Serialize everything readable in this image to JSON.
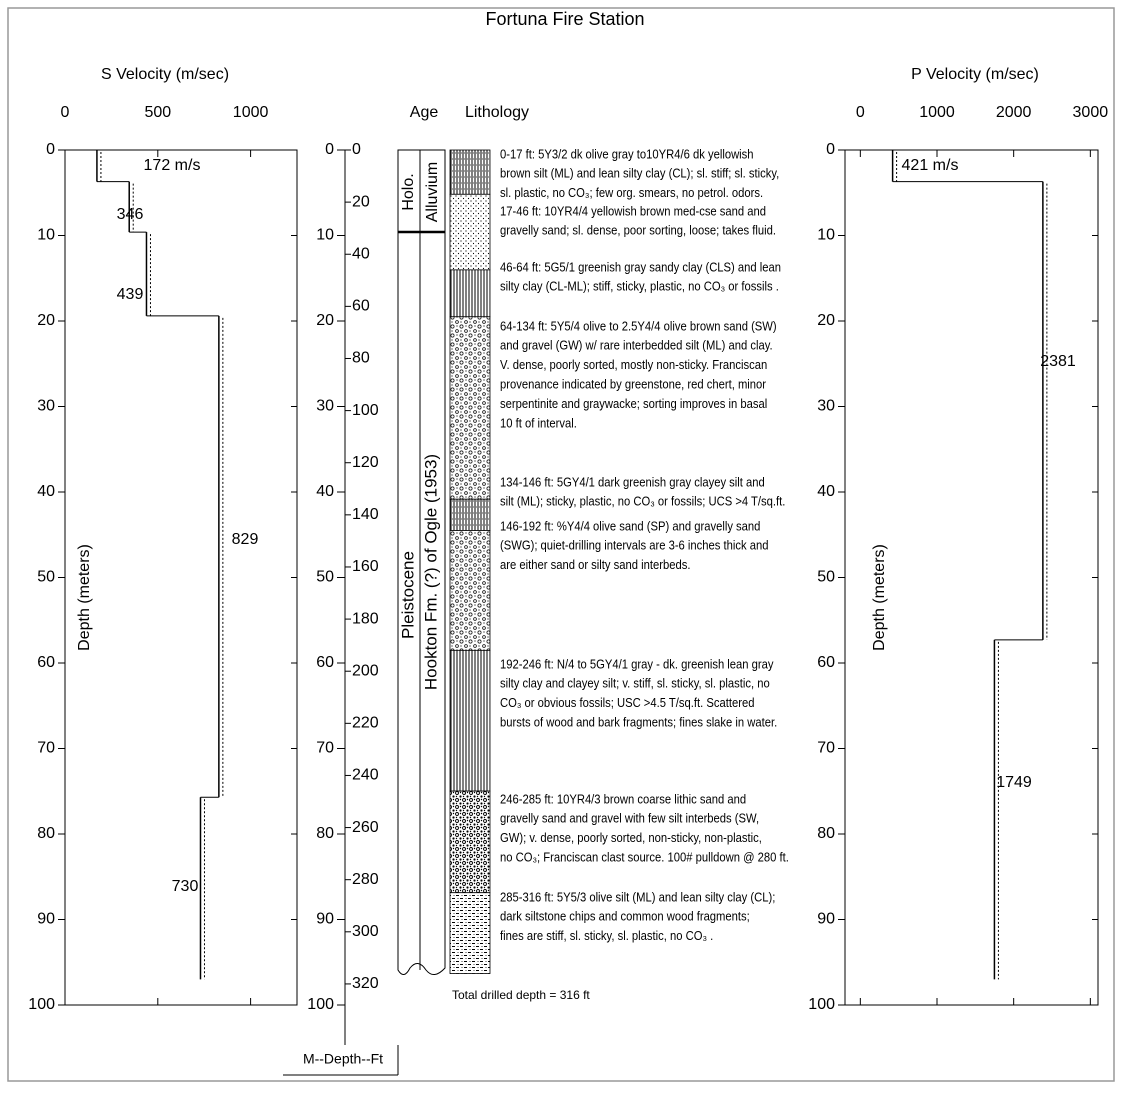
{
  "title": "Fortuna Fire Station",
  "chart_data": [
    {
      "type": "step-profile",
      "xlabel": "S Velocity (m/sec)",
      "ylabel": "Depth (meters)",
      "xlim": [
        0,
        1250
      ],
      "xticks": [
        0,
        500,
        1000
      ],
      "ylim": [
        0,
        100
      ],
      "yticks": [
        0,
        10,
        20,
        30,
        40,
        50,
        60,
        70,
        80,
        90,
        100
      ],
      "color": "#000000",
      "values": [
        172,
        346,
        439,
        829,
        730
      ],
      "value_labels": [
        "172 m/s",
        "346",
        "439",
        "829",
        "730"
      ],
      "depth_top": [
        0,
        3.7,
        9.6,
        19.4,
        75.7
      ],
      "depth_bottom": [
        3.7,
        9.6,
        19.4,
        75.7,
        97
      ]
    },
    {
      "type": "step-profile",
      "xlabel": "P Velocity (m/sec)",
      "ylabel": "Depth (meters)",
      "xlim": [
        -200,
        3100
      ],
      "xticks": [
        0,
        1000,
        2000,
        3000
      ],
      "ylim": [
        0,
        100
      ],
      "yticks": [
        0,
        10,
        20,
        30,
        40,
        50,
        60,
        70,
        80,
        90,
        100
      ],
      "color": "#000000",
      "values": [
        421,
        2381,
        1749
      ],
      "value_labels": [
        "421 m/s",
        "2381",
        "1749"
      ],
      "depth_top": [
        0,
        3.7,
        57.3
      ],
      "depth_bottom": [
        3.7,
        57.3,
        97
      ]
    }
  ],
  "depth_scale": {
    "meters": [
      0,
      10,
      20,
      30,
      40,
      50,
      60,
      70,
      80,
      90,
      100
    ],
    "feet": [
      0,
      20,
      40,
      60,
      80,
      100,
      120,
      140,
      160,
      180,
      200,
      220,
      240,
      260,
      280,
      300,
      320
    ],
    "label": "M--Depth--Ft"
  },
  "age": {
    "title": "Age",
    "epochs": [
      "Holo.",
      "Pleistocene"
    ],
    "formations": [
      "Alluvium",
      "Hookton Fm. (?) of Ogle (1953)"
    ]
  },
  "lithology": {
    "title": "Lithology",
    "total": "Total drilled depth = 316 ft",
    "intervals": [
      {
        "top_ft": 0,
        "bottom_ft": 17,
        "description": [
          "0-17 ft: 5Y3/2 dk olive gray to10YR4/6 dk yellowish",
          "brown silt (ML) and lean silty clay (CL); sl. stiff; sl. sticky,",
          "sl. plastic, no CO₃; few org. smears, no petrol. odors."
        ]
      },
      {
        "top_ft": 17,
        "bottom_ft": 46,
        "description": [
          "17-46 ft: 10YR4/4 yellowish brown med-cse sand and",
          "gravelly sand; sl. dense, poor sorting, loose; takes fluid."
        ]
      },
      {
        "top_ft": 46,
        "bottom_ft": 64,
        "description": [
          "46-64 ft: 5G5/1 greenish gray sandy clay (CLS) and lean",
          "silty clay (CL-ML); stiff, sticky, plastic, no CO₃ or fossils ."
        ]
      },
      {
        "top_ft": 64,
        "bottom_ft": 134,
        "description": [
          "64-134 ft: 5Y5/4 olive to 2.5Y4/4 olive brown sand (SW)",
          "and gravel (GW) w/ rare interbedded silt (ML) and clay.",
          "V. dense, poorly sorted, mostly non-sticky. Franciscan",
          "provenance indicated by greenstone, red chert, minor",
          "serpentinite and graywacke; sorting improves in basal",
          "10 ft of interval."
        ]
      },
      {
        "top_ft": 134,
        "bottom_ft": 146,
        "description": [
          "134-146 ft: 5GY4/1 dark greenish gray clayey silt and",
          "silt (ML); sticky, plastic, no CO₃ or fossils; UCS >4 T/sq.ft."
        ]
      },
      {
        "top_ft": 146,
        "bottom_ft": 192,
        "description": [
          "146-192 ft: %Y4/4 olive sand (SP) and gravelly sand",
          "(SWG); quiet-drilling intervals are 3-6 inches thick and",
          "are either sand or silty sand interbeds."
        ]
      },
      {
        "top_ft": 192,
        "bottom_ft": 246,
        "description": [
          "192-246 ft: N/4 to 5GY4/1 gray - dk. greenish lean gray",
          "silty clay and clayey silt; v. stiff, sl. sticky, sl. plastic, no",
          "CO₃ or obvious fossils; USC >4.5 T/sq.ft. Scattered",
          "bursts of wood and bark fragments; fines slake in water."
        ]
      },
      {
        "top_ft": 246,
        "bottom_ft": 285,
        "description": [
          "246-285 ft: 10YR4/3 brown coarse lithic sand and",
          "gravelly sand and gravel with few silt interbeds (SW,",
          "GW); v. dense, poorly sorted, non-sticky, non-plastic,",
          "no CO₃; Franciscan clast source. 100# pulldown @ 280 ft."
        ]
      },
      {
        "top_ft": 285,
        "bottom_ft": 316,
        "description": [
          "285-316 ft: 5Y5/3 olive silt (ML) and lean silty clay (CL);",
          "dark siltstone chips and common wood fragments;",
          "fines are stiff, sl. sticky, sl. plastic, no CO₃ ."
        ]
      }
    ]
  }
}
